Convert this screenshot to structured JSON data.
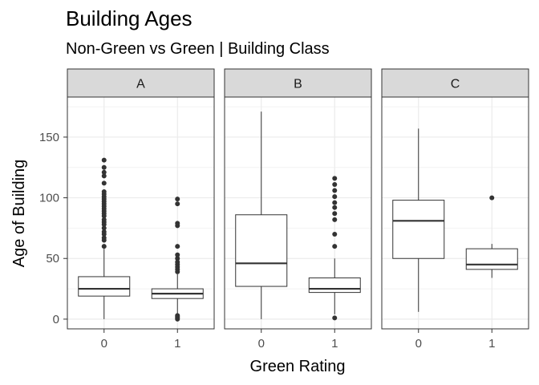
{
  "chart_data": {
    "type": "boxplot",
    "title": "Building Ages",
    "subtitle": "Non-Green vs Green | Building Class",
    "xlabel": "Green Rating",
    "ylabel": "Age of Building",
    "ylim": [
      -8,
      183
    ],
    "yticks": [
      0,
      50,
      100,
      150
    ],
    "categories": [
      "0",
      "1"
    ],
    "grid": true,
    "facets": [
      {
        "label": "A",
        "boxes": [
          {
            "x": "0",
            "min": 0,
            "q1": 19,
            "median": 25,
            "q3": 35,
            "max": 58,
            "outliers": [
              60,
              65,
              67,
              70,
              72,
              75,
              78,
              80,
              82,
              85,
              87,
              89,
              91,
              93,
              95,
              97,
              99,
              101,
              103,
              105,
              112,
              118,
              121,
              125,
              131
            ]
          },
          {
            "x": "1",
            "min": 3,
            "q1": 17,
            "median": 21,
            "q3": 25,
            "max": 37,
            "outliers": [
              0,
              1,
              2,
              3,
              39,
              41,
              43,
              45,
              47,
              50,
              53,
              60,
              77,
              79,
              95,
              99
            ]
          }
        ]
      },
      {
        "label": "B",
        "boxes": [
          {
            "x": "0",
            "min": 0,
            "q1": 27,
            "median": 46,
            "q3": 86,
            "max": 171,
            "outliers": []
          },
          {
            "x": "1",
            "min": 4,
            "q1": 22,
            "median": 25,
            "q3": 34,
            "max": 50,
            "outliers": [
              1,
              60,
              70,
              82,
              87,
              92,
              96,
              101,
              106,
              111,
              116
            ]
          }
        ]
      },
      {
        "label": "C",
        "boxes": [
          {
            "x": "0",
            "min": 6,
            "q1": 50,
            "median": 81,
            "q3": 98,
            "max": 157,
            "outliers": []
          },
          {
            "x": "1",
            "min": 34,
            "q1": 41,
            "median": 45,
            "q3": 58,
            "max": 62,
            "outliers": [
              100
            ]
          }
        ]
      }
    ]
  }
}
